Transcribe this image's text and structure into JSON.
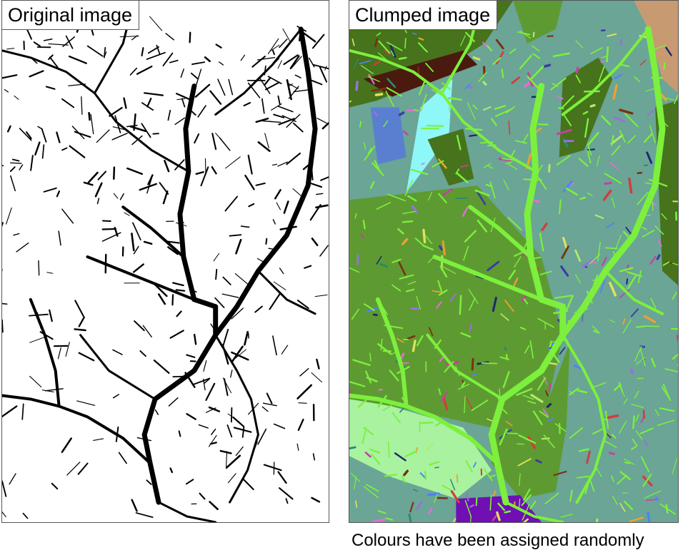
{
  "panels": {
    "original": {
      "label": "Original image",
      "colors": {
        "background": "#ffffff",
        "channels": "#000000"
      }
    },
    "clumped": {
      "label": "Clumped image",
      "colors": {
        "base": "#6aa596",
        "channels": "#7cf03c",
        "olive": "#5e9a32",
        "dark_green": "#46731c",
        "light_green": "#a8f2a0",
        "purple": "#6f0fb4",
        "maroon": "#4a1a0e",
        "tan": "#c79a72",
        "cyan": "#8ef7f7",
        "steel_blue": "#5a7fd0"
      }
    }
  },
  "caption": "Colours have been assigned randomly"
}
